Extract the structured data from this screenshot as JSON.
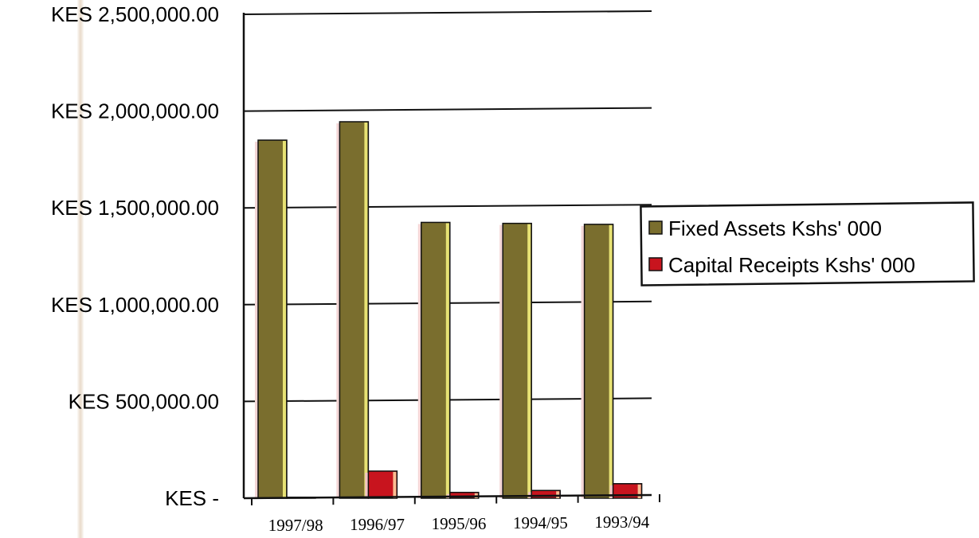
{
  "chart_data": {
    "type": "bar",
    "categories": [
      "1997/98",
      "1996/97",
      "1995/96",
      "1994/95",
      "1993/94"
    ],
    "series": [
      {
        "name": "Fixed Assets Kshs' 000",
        "color": "#7a6e2e",
        "values": [
          1850000,
          1945000,
          1425000,
          1420000,
          1415000
        ]
      },
      {
        "name": "Capital Receipts Kshs' 000",
        "color": "#c8141e",
        "values": [
          5000,
          140000,
          30000,
          40000,
          75000
        ]
      }
    ],
    "ylim": [
      0,
      2500000
    ],
    "yticks": [
      0,
      500000,
      1000000,
      1500000,
      2000000,
      2500000
    ],
    "ytick_labels": [
      "KES -",
      "KES  500,000.00",
      "KES  1,000,000.00",
      "KES  1,500,000.00",
      "KES  2,000,000.00",
      "KES  2,500,000.00"
    ],
    "grid": true,
    "legend_position": "right"
  }
}
